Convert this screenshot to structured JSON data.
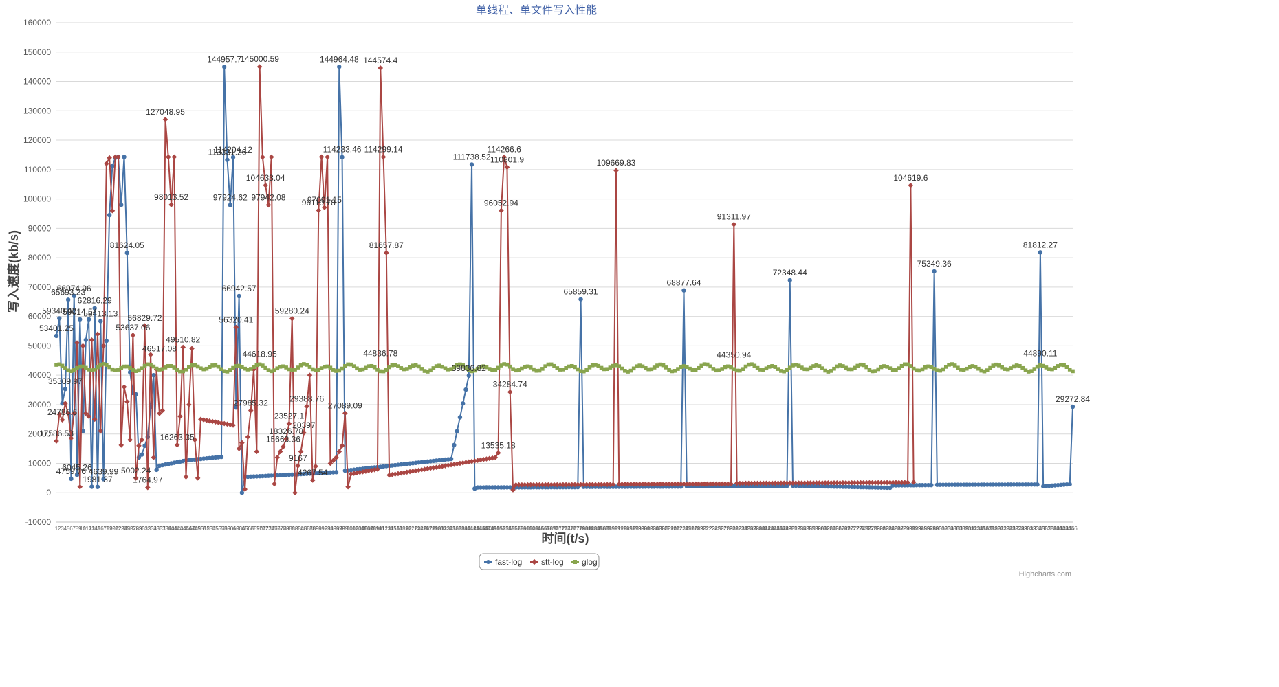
{
  "chart_data": {
    "type": "line",
    "title": "单线程、单文件写入性能",
    "xlabel": "时间(t/s)",
    "ylabel": "写入速度(kb/s)",
    "ylim": [
      -10000,
      160000
    ],
    "yticks": [
      -10000,
      0,
      10000,
      20000,
      30000,
      40000,
      50000,
      60000,
      70000,
      80000,
      90000,
      100000,
      110000,
      120000,
      130000,
      140000,
      150000,
      160000
    ],
    "x_start": 1,
    "x_end": 346,
    "grid": true,
    "legend": "bottom-center",
    "credits": "Highcharts.com",
    "series": [
      {
        "name": "fast-log",
        "color": "#4572A7",
        "marker": "circle",
        "points": [
          [
            1,
            53401.25
          ],
          [
            2,
            59340.42
          ],
          [
            3,
            30422
          ],
          [
            4,
            35309.97
          ],
          [
            5,
            65693.23
          ],
          [
            6,
            4759.76
          ],
          [
            7,
            66974.96
          ],
          [
            8,
            6045.26
          ],
          [
            9,
            59014.54
          ],
          [
            10,
            21000
          ],
          [
            11,
            52000
          ],
          [
            12,
            59014.54
          ],
          [
            13,
            2045.26
          ],
          [
            14,
            62816.29
          ],
          [
            15,
            1981.37
          ],
          [
            16,
            58413.13
          ],
          [
            17,
            4639.99
          ],
          [
            18,
            51711.49
          ],
          [
            19,
            94500
          ],
          [
            20,
            111228.04
          ],
          [
            21,
            114000
          ],
          [
            22,
            114282.41
          ],
          [
            23,
            97973.18
          ],
          [
            24,
            114282.41
          ],
          [
            25,
            81624.05
          ],
          [
            26,
            41000
          ],
          [
            27,
            33951.18
          ],
          [
            28,
            33500
          ],
          [
            29,
            12000
          ],
          [
            30,
            13000
          ],
          [
            31,
            16000
          ],
          [
            32,
            19000
          ],
          [
            33,
            29290.55
          ],
          [
            34,
            40000
          ],
          [
            35,
            7800
          ],
          [
            36,
            9200
          ],
          [
            45,
            11000
          ],
          [
            57,
            12200
          ],
          [
            58,
            144957.7
          ],
          [
            59,
            113331.26
          ],
          [
            60,
            97924.62
          ],
          [
            61,
            114204.12
          ],
          [
            62,
            29000
          ],
          [
            63,
            66942.57
          ],
          [
            64,
            0
          ],
          [
            65,
            5400
          ],
          [
            72,
            5700
          ],
          [
            96,
            7000
          ],
          [
            97,
            144964.48
          ],
          [
            98,
            114233.46
          ],
          [
            99,
            7500
          ],
          [
            135,
            11500
          ],
          [
            141,
            39836.82
          ],
          [
            142,
            111738.52
          ],
          [
            143,
            1400
          ],
          [
            144,
            1800
          ],
          [
            178,
            1900
          ],
          [
            179,
            65859.31
          ],
          [
            180,
            2000
          ],
          [
            213,
            2100
          ],
          [
            214,
            68877.64
          ],
          [
            215,
            2200
          ],
          [
            249,
            2300
          ],
          [
            250,
            72348.44
          ],
          [
            251,
            2400
          ],
          [
            284,
            1700
          ],
          [
            285,
            2500
          ],
          [
            298,
            2600
          ],
          [
            299,
            75349.36
          ],
          [
            300,
            2700
          ],
          [
            334,
            2800
          ],
          [
            335,
            81812.27
          ],
          [
            336,
            2200
          ],
          [
            345,
            2900
          ],
          [
            346,
            29272.84
          ]
        ],
        "labels": [
          {
            "x": 2,
            "y": 59340.42,
            "text": "59340.42"
          },
          {
            "x": 1,
            "y": 53401.25,
            "text": "53401.25"
          },
          {
            "x": 4,
            "y": 35309.97,
            "text": "35309.97"
          },
          {
            "x": 5,
            "y": 65693.23,
            "text": "65693.23"
          },
          {
            "x": 7,
            "y": 66974.96,
            "text": "66974.96"
          },
          {
            "x": 6,
            "y": 4759.76,
            "text": "4759.76"
          },
          {
            "x": 8,
            "y": 6045.26,
            "text": "6045.26"
          },
          {
            "x": 9,
            "y": 59014.54,
            "text": "59014.54"
          },
          {
            "x": 14,
            "y": 62816.29,
            "text": "62816.29"
          },
          {
            "x": 16,
            "y": 58413.13,
            "text": "58413.13"
          },
          {
            "x": 15,
            "y": 1981.37,
            "text": "1981.37"
          },
          {
            "x": 17,
            "y": 4639.99,
            "text": "4639.99"
          },
          {
            "x": 25,
            "y": 81624.05,
            "text": "81624.05"
          },
          {
            "x": 58,
            "y": 144957.7,
            "text": "144957.7"
          },
          {
            "x": 59,
            "y": 113331.26,
            "text": "113331.26"
          },
          {
            "x": 61,
            "y": 114204.12,
            "text": "114204.12"
          },
          {
            "x": 60,
            "y": 97924.62,
            "text": "97924.62"
          },
          {
            "x": 63,
            "y": 66942.57,
            "text": "66942.57"
          },
          {
            "x": 97,
            "y": 144964.48,
            "text": "144964.48"
          },
          {
            "x": 98,
            "y": 114233.46,
            "text": "114233.46"
          },
          {
            "x": 142,
            "y": 111738.52,
            "text": "111738.52"
          },
          {
            "x": 141,
            "y": 39836.82,
            "text": "39836.82"
          },
          {
            "x": 179,
            "y": 65859.31,
            "text": "65859.31"
          },
          {
            "x": 214,
            "y": 68877.64,
            "text": "68877.64"
          },
          {
            "x": 250,
            "y": 72348.44,
            "text": "72348.44"
          },
          {
            "x": 299,
            "y": 75349.36,
            "text": "75349.36"
          },
          {
            "x": 335,
            "y": 81812.27,
            "text": "81812.27"
          },
          {
            "x": 346,
            "y": 29272.84,
            "text": "29272.84"
          }
        ]
      },
      {
        "name": "stt-log",
        "color": "#AA4643",
        "marker": "diamond",
        "points": [
          [
            1,
            17586.53
          ],
          [
            2,
            26700
          ],
          [
            3,
            24786.6
          ],
          [
            4,
            30425
          ],
          [
            5,
            27000
          ],
          [
            6,
            18600
          ],
          [
            7,
            27000
          ],
          [
            8,
            51000
          ],
          [
            9,
            2000
          ],
          [
            10,
            50000
          ],
          [
            11,
            27000
          ],
          [
            12,
            26000
          ],
          [
            13,
            52000
          ],
          [
            14,
            25000
          ],
          [
            15,
            54000
          ],
          [
            16,
            21000
          ],
          [
            17,
            50000
          ],
          [
            18,
            112000
          ],
          [
            19,
            114000
          ],
          [
            20,
            96000
          ],
          [
            21,
            114282.41
          ],
          [
            22,
            114282.41
          ],
          [
            23,
            16213
          ],
          [
            24,
            36000
          ],
          [
            25,
            31000
          ],
          [
            26,
            18000
          ],
          [
            27,
            53637.06
          ],
          [
            28,
            5002.24
          ],
          [
            29,
            16000
          ],
          [
            30,
            18000
          ],
          [
            31,
            56829.72
          ],
          [
            32,
            1764.97
          ],
          [
            33,
            47000
          ],
          [
            34,
            12000
          ],
          [
            35,
            42000
          ],
          [
            36,
            27000
          ],
          [
            37,
            28000
          ],
          [
            38,
            127048.95
          ],
          [
            39,
            114283.7
          ],
          [
            40,
            98013.52
          ],
          [
            41,
            114289.77
          ],
          [
            42,
            16263.35
          ],
          [
            43,
            26000
          ],
          [
            44,
            49510.82
          ],
          [
            45,
            5394
          ],
          [
            46,
            30000
          ],
          [
            47,
            49100
          ],
          [
            48,
            18000
          ],
          [
            49,
            5000
          ],
          [
            50,
            25000
          ],
          [
            61,
            23000
          ],
          [
            62,
            56320.41
          ],
          [
            63,
            15000
          ],
          [
            64,
            17000
          ],
          [
            65,
            1200
          ],
          [
            66,
            19000
          ],
          [
            67,
            27985.32
          ],
          [
            68,
            42000
          ],
          [
            69,
            14000
          ],
          [
            70,
            145000.59
          ],
          [
            71,
            114247.33
          ],
          [
            72,
            104633.04
          ],
          [
            73,
            97942.08
          ],
          [
            74,
            114282.96
          ],
          [
            75,
            3000
          ],
          [
            76,
            12000
          ],
          [
            77,
            14000
          ],
          [
            78,
            15663.36
          ],
          [
            79,
            18326.78
          ],
          [
            80,
            23527.1
          ],
          [
            81,
            59280.24
          ],
          [
            82,
            0
          ],
          [
            83,
            9167
          ],
          [
            84,
            14000
          ],
          [
            85,
            20397
          ],
          [
            86,
            29388.76
          ],
          [
            87,
            40000
          ],
          [
            88,
            4267.54
          ],
          [
            89,
            9000
          ],
          [
            90,
            96119.78
          ],
          [
            91,
            114302.97
          ],
          [
            92,
            97091.15
          ],
          [
            93,
            114282.52
          ],
          [
            94,
            10000
          ],
          [
            95,
            11000
          ],
          [
            96,
            12000
          ],
          [
            97,
            14000
          ],
          [
            98,
            16000
          ],
          [
            99,
            27089.09
          ],
          [
            100,
            2000
          ],
          [
            101,
            6400
          ],
          [
            110,
            8000
          ],
          [
            111,
            144574.4
          ],
          [
            112,
            114299.14
          ],
          [
            113,
            81657.87
          ],
          [
            114,
            6000
          ],
          [
            150,
            12000
          ],
          [
            151,
            13535.18
          ],
          [
            152,
            96052.94
          ],
          [
            153,
            114266.6
          ],
          [
            154,
            110801.9
          ],
          [
            155,
            34284.74
          ],
          [
            156,
            1000
          ],
          [
            157,
            2700
          ],
          [
            190,
            2800
          ],
          [
            191,
            109669.83
          ],
          [
            192,
            2900
          ],
          [
            230,
            3000
          ],
          [
            231,
            91311.97
          ],
          [
            232,
            3200
          ],
          [
            290,
            3500
          ],
          [
            291,
            104619.6
          ],
          [
            292,
            3600
          ]
        ],
        "labels": [
          {
            "x": 1,
            "y": 17586.53,
            "text": "17586.53"
          },
          {
            "x": 3,
            "y": 24786.6,
            "text": "24786.6"
          },
          {
            "x": 38,
            "y": 127048.95,
            "text": "127048.95"
          },
          {
            "x": 40,
            "y": 98013.52,
            "text": "98013.52"
          },
          {
            "x": 44,
            "y": 49510.82,
            "text": "49510.82"
          },
          {
            "x": 42,
            "y": 16263.35,
            "text": "16263.35"
          },
          {
            "x": 27,
            "y": 53637.06,
            "text": "53637.06"
          },
          {
            "x": 31,
            "y": 56829.72,
            "text": "56829.72"
          },
          {
            "x": 28,
            "y": 5002.24,
            "text": "5002.24"
          },
          {
            "x": 32,
            "y": 1764.97,
            "text": "1764.97"
          },
          {
            "x": 62,
            "y": 56320.41,
            "text": "56320.41"
          },
          {
            "x": 67,
            "y": 27985.32,
            "text": "27985.32"
          },
          {
            "x": 70,
            "y": 145000.59,
            "text": "145000.59"
          },
          {
            "x": 72,
            "y": 104633.04,
            "text": "104633.04"
          },
          {
            "x": 73,
            "y": 97942.08,
            "text": "97942.08"
          },
          {
            "x": 81,
            "y": 59280.24,
            "text": "59280.24"
          },
          {
            "x": 80,
            "y": 23527.1,
            "text": "23527.1"
          },
          {
            "x": 79,
            "y": 18326.78,
            "text": "18326.78"
          },
          {
            "x": 78,
            "y": 15663.36,
            "text": "15663.36"
          },
          {
            "x": 83,
            "y": 9167,
            "text": "9167"
          },
          {
            "x": 85,
            "y": 20397,
            "text": "20397"
          },
          {
            "x": 86,
            "y": 29388.76,
            "text": "29388.76"
          },
          {
            "x": 88,
            "y": 4267.54,
            "text": "4267.54"
          },
          {
            "x": 90,
            "y": 96119.78,
            "text": "96119.78"
          },
          {
            "x": 92,
            "y": 97091.15,
            "text": "97091.15"
          },
          {
            "x": 99,
            "y": 27089.09,
            "text": "27089.09"
          },
          {
            "x": 111,
            "y": 144574.4,
            "text": "144574.4"
          },
          {
            "x": 112,
            "y": 114299.14,
            "text": "114299.14"
          },
          {
            "x": 113,
            "y": 81657.87,
            "text": "81657.87"
          },
          {
            "x": 151,
            "y": 13535.18,
            "text": "13535.18"
          },
          {
            "x": 152,
            "y": 96052.94,
            "text": "96052.94"
          },
          {
            "x": 153,
            "y": 114266.6,
            "text": "114266.6"
          },
          {
            "x": 154,
            "y": 110801.9,
            "text": "110801.9"
          },
          {
            "x": 155,
            "y": 34284.74,
            "text": "34284.74"
          },
          {
            "x": 191,
            "y": 109669.83,
            "text": "109669.83"
          },
          {
            "x": 231,
            "y": 91311.97,
            "text": "91311.97"
          },
          {
            "x": 291,
            "y": 104619.6,
            "text": "104619.6"
          }
        ]
      },
      {
        "name": "glog",
        "color": "#89A54E",
        "marker": "square",
        "base": 42500,
        "amplitude": 900,
        "labels": [
          {
            "x": 36,
            "y": 46517.08,
            "text": "46517.08"
          },
          {
            "x": 70,
            "y": 44618.95,
            "text": "44618.95"
          },
          {
            "x": 111,
            "y": 44836.78,
            "text": "44836.78"
          },
          {
            "x": 231,
            "y": 44350.94,
            "text": "44350.94"
          },
          {
            "x": 335,
            "y": 44890.11,
            "text": "44890.11"
          }
        ]
      }
    ]
  }
}
